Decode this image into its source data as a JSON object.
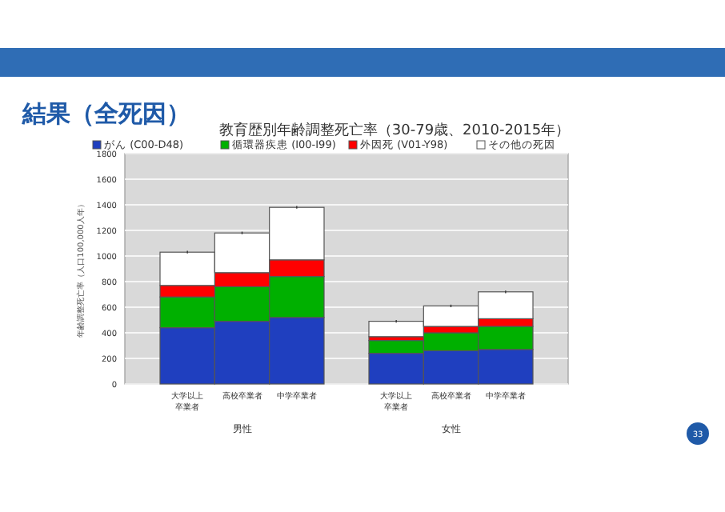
{
  "chart_data": {
    "type": "bar",
    "stacked": true,
    "title": "結果（全死因）",
    "subtitle": "教育歴別年齢調整死亡率（30-79歳、2010-2015年）",
    "ylabel": "年齢調整死亡率（人口100,000人年）",
    "categories": [
      "大学以上卒業者",
      "高校卒業者",
      "中学卒業者",
      "大学以上卒業者",
      "高校卒業者",
      "中学卒業者"
    ],
    "series": [
      {
        "name": "がん (C00-D48)",
        "color": "#1f3fbf",
        "values": [
          440,
          490,
          520,
          240,
          260,
          270
        ]
      },
      {
        "name": "循環器疾患 (I00-I99)",
        "color": "#00b000",
        "values": [
          240,
          270,
          320,
          100,
          140,
          180
        ]
      },
      {
        "name": "外因死 (V01-Y98)",
        "color": "#ff0000",
        "values": [
          90,
          110,
          130,
          30,
          50,
          60
        ]
      },
      {
        "name": "その他の死因",
        "color": "#ffffff",
        "values": [
          260,
          310,
          410,
          120,
          160,
          210
        ],
        "errors": [
          10,
          10,
          10,
          10,
          10,
          10
        ]
      }
    ],
    "ylim": [
      0,
      1800
    ],
    "yticks": [
      0,
      200,
      400,
      600,
      800,
      1000,
      1200,
      1400,
      1600,
      1800
    ],
    "grid": "y",
    "legend": "top",
    "annotations": [
      "男性",
      "女性",
      "33"
    ]
  }
}
